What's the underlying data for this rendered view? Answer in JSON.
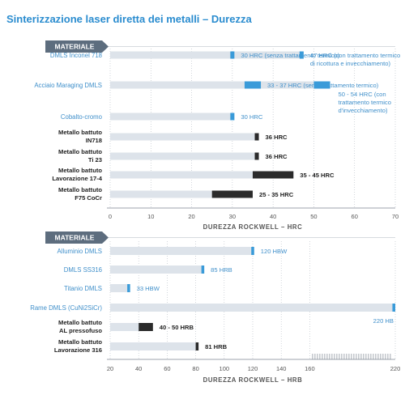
{
  "chart_data": [
    {
      "type": "bar",
      "orientation": "horizontal",
      "title": "Sinterizzazione laser diretta dei metalli – Durezza",
      "category_header": "MATERIALE",
      "xlabel": "DUREZZA ROCKWELL – HRC",
      "xlim": [
        0,
        70
      ],
      "ticks": [
        0,
        10,
        20,
        30,
        40,
        50,
        60,
        70
      ],
      "grid": true,
      "rows": [
        {
          "category": "DMLS Inconel 718",
          "style": "dmls",
          "bars": [
            {
              "min": 29.5,
              "max": 30.5,
              "label": [
                "30 HRC (senza trattamento termico)"
              ]
            },
            {
              "min": 46.5,
              "max": 47.5,
              "label": [
                "47 HRC (con trattamento termico",
                "di ricottura e invecchiamento)"
              ]
            }
          ]
        },
        {
          "category": "Acciaio Maraging DMLS",
          "style": "dmls",
          "bars": [
            {
              "min": 33,
              "max": 37,
              "label": [
                "33 - 37 HRC (senza trattamento termico)"
              ]
            },
            {
              "min": 50,
              "max": 54,
              "label": [
                "50 - 54 HRC (con",
                "trattamento termico",
                "d'invecchiamento)"
              ]
            }
          ]
        },
        {
          "category": "Cobalto-cromo",
          "style": "dmls",
          "bars": [
            {
              "min": 29.5,
              "max": 30.5,
              "label": [
                "30 HRC"
              ]
            }
          ]
        },
        {
          "category": [
            "Metallo battuto",
            "IN718"
          ],
          "style": "wrought",
          "bars": [
            {
              "min": 35.5,
              "max": 36.5,
              "label": [
                "36 HRC"
              ]
            }
          ]
        },
        {
          "category": [
            "Metallo battuto",
            "Ti 23"
          ],
          "style": "wrought",
          "bars": [
            {
              "min": 35.5,
              "max": 36.5,
              "label": [
                "36 HRC"
              ]
            }
          ]
        },
        {
          "category": [
            "Metallo battuto",
            "Lavorazione 17-4"
          ],
          "style": "wrought",
          "bars": [
            {
              "min": 35,
              "max": 45,
              "label": [
                "35 - 45 HRC"
              ]
            }
          ]
        },
        {
          "category": [
            "Metallo battuto",
            "F75 CoCr"
          ],
          "style": "wrought",
          "bars": [
            {
              "min": 25,
              "max": 35,
              "label": [
                "25 - 35 HRC"
              ]
            }
          ]
        }
      ]
    },
    {
      "type": "bar",
      "orientation": "horizontal",
      "category_header": "MATERIALE",
      "xlabel": "DUREZZA ROCKWELL – HRB",
      "xlim": [
        20,
        220
      ],
      "ticks": [
        20,
        40,
        60,
        80,
        100,
        120,
        140,
        160,
        220
      ],
      "grid": true,
      "rows": [
        {
          "category": "Alluminio DMLS",
          "style": "dmls",
          "bars": [
            {
              "min": 119,
              "max": 121,
              "label": [
                "120 HBW"
              ]
            }
          ]
        },
        {
          "category": "DMLS SS316",
          "style": "dmls",
          "bars": [
            {
              "min": 84,
              "max": 86,
              "label": [
                "85 HRB"
              ]
            }
          ]
        },
        {
          "category": "Titanio DMLS",
          "style": "dmls",
          "bars": [
            {
              "min": 32,
              "max": 34,
              "label": [
                "33 HBW"
              ]
            }
          ]
        },
        {
          "category": "Rame DMLS (CuNi2SiCr)",
          "style": "dmls",
          "bars": [
            {
              "min": 218,
              "max": 220,
              "label": [
                "220 HB"
              ]
            }
          ]
        },
        {
          "category": [
            "Metallo battuto",
            "AL pressofuso"
          ],
          "style": "wrought",
          "bars": [
            {
              "min": 40,
              "max": 50,
              "label": [
                "40 - 50 HRB"
              ]
            }
          ]
        },
        {
          "category": [
            "Metallo battuto",
            "Lavorazione 316"
          ],
          "style": "wrought",
          "bars": [
            {
              "min": 80,
              "max": 82,
              "label": [
                "81 HRB"
              ]
            }
          ]
        }
      ]
    }
  ],
  "colors": {
    "dmls": "#3a9bd9",
    "wrought": "#2b2b2b",
    "track": "#dde3ea",
    "header": "#5d6d7e",
    "title": "#2a8ccf",
    "grid": "#b5bcc4"
  }
}
